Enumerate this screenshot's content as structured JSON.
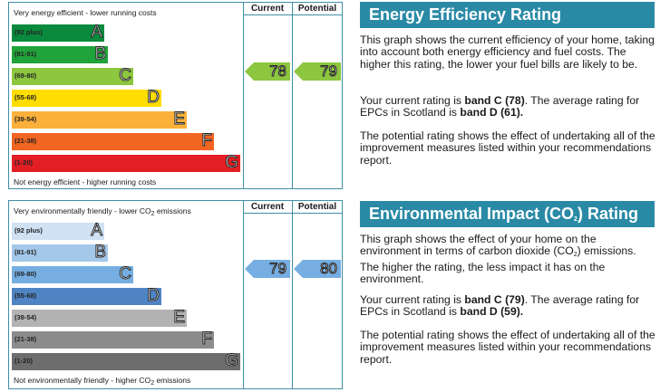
{
  "energy": {
    "top_note": "Very energy efficient - lower running costs",
    "bottom_note": "Not energy efficient - higher running costs",
    "col_current": "Current",
    "col_potential": "Potential",
    "bands": [
      {
        "range": "(92 plus)",
        "letter": "A",
        "color": "#0a8a3c"
      },
      {
        "range": "(81-91)",
        "letter": "B",
        "color": "#20a33a"
      },
      {
        "range": "(69-80)",
        "letter": "C",
        "color": "#8dc63f"
      },
      {
        "range": "(55-68)",
        "letter": "D",
        "color": "#ffdd00"
      },
      {
        "range": "(39-54)",
        "letter": "E",
        "color": "#fbb03b"
      },
      {
        "range": "(21-38)",
        "letter": "F",
        "color": "#f26522"
      },
      {
        "range": "(1-20)",
        "letter": "G",
        "color": "#e31e24"
      }
    ],
    "current": "78",
    "potential": "79",
    "arrow_color": "#8dc63f",
    "heading": "Energy Efficiency Rating",
    "p1": "This graph shows the current efficiency of your home, taking into account both energy efficiency and fuel costs. The higher this rating, the lower your fuel bills are likely to be.",
    "p2_a": "Your current rating is ",
    "p2_b": "band C (78)",
    "p2_c": ". The average rating for EPCs in Scotland is ",
    "p2_d": "band D (61).",
    "p3": "The potential rating shows the effect of undertaking all of the improvement measures listed within your recommendations report."
  },
  "impact": {
    "top_note_a": "Very environmentally friendly - lower CO",
    "top_note_b": " emissions",
    "bottom_note_a": "Not environmentally friendly - higher CO",
    "bottom_note_b": " emissions",
    "sub2": "2",
    "col_current": "Current",
    "col_potential": "Potential",
    "bands": [
      {
        "range": "(92 plus)",
        "letter": "A",
        "color": "#cfe1f3"
      },
      {
        "range": "(81-91)",
        "letter": "B",
        "color": "#a4c8ea"
      },
      {
        "range": "(69-80)",
        "letter": "C",
        "color": "#76aee2"
      },
      {
        "range": "(55-68)",
        "letter": "D",
        "color": "#4f84c4"
      },
      {
        "range": "(39-54)",
        "letter": "E",
        "color": "#b3b3b3"
      },
      {
        "range": "(21-38)",
        "letter": "F",
        "color": "#8c8c8c"
      },
      {
        "range": "(1-20)",
        "letter": "G",
        "color": "#6d6d6d"
      }
    ],
    "current": "79",
    "potential": "80",
    "arrow_color": "#76aee2",
    "heading_a": "Environmental Impact (CO",
    "heading_b": ") Rating",
    "p1_a": "This graph shows the effect of your home on the environment in terms of carbon dioxide (CO",
    "p1_b": ") emissions. The higher the rating, the less impact it has on the environment.",
    "p2_a": "Your current rating is ",
    "p2_b": "band C (79)",
    "p2_c": ". The average rating for EPCs in Scotland is ",
    "p2_d": "band D (59).",
    "p3": "The potential rating shows the effect of undertaking all of the improvement measures listed within your recommendations report."
  }
}
